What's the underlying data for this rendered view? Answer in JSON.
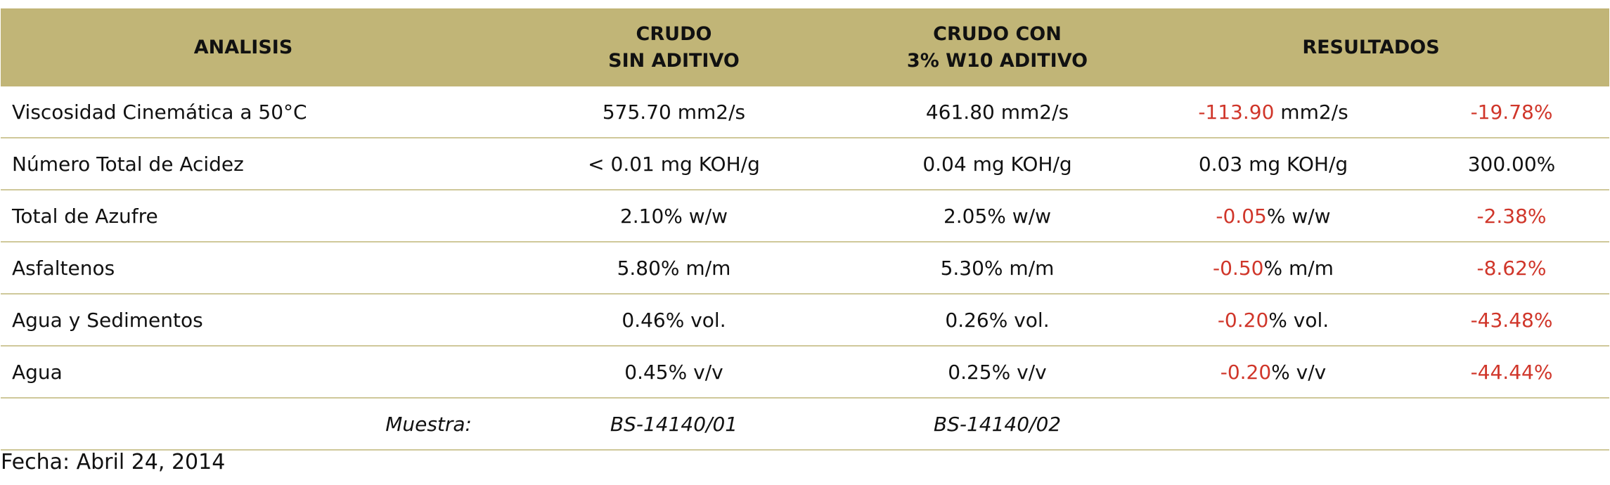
{
  "header": {
    "analisis": "ANALISIS",
    "crudo_sin_line1": "CRUDO",
    "crudo_sin_line2": "SIN ADITIVO",
    "crudo_con_line1": "CRUDO CON",
    "crudo_con_line2": "3% W10 ADITIVO",
    "resultados": "RESULTADOS"
  },
  "rows": [
    {
      "name": "Viscosidad Cinemática a 50°C",
      "sin": "575.70 mm2/s",
      "con": "461.80 mm2/s",
      "diff_value": "-113.90",
      "diff_unit": " mm2/s",
      "diff_value_red": true,
      "pct": "-19.78%",
      "pct_red": true
    },
    {
      "name": "Número Total de Acidez",
      "sin": "< 0.01 mg KOH/g",
      "con": "0.04 mg KOH/g",
      "diff_value": "0.03",
      "diff_unit": " mg KOH/g",
      "diff_value_red": false,
      "pct": "300.00%",
      "pct_red": false
    },
    {
      "name": "Total de Azufre",
      "sin": "2.10% w/w",
      "con": "2.05% w/w",
      "diff_value": "-0.05",
      "diff_unit": "% w/w",
      "diff_value_red": true,
      "pct": "-2.38%",
      "pct_red": true
    },
    {
      "name": "Asfaltenos",
      "sin": "5.80% m/m",
      "con": "5.30% m/m",
      "diff_value": "-0.50",
      "diff_unit": "% m/m",
      "diff_value_red": true,
      "pct": "-8.62%",
      "pct_red": true
    },
    {
      "name": "Agua y Sedimentos",
      "sin": "0.46% vol.",
      "con": "0.26% vol.",
      "diff_value": "-0.20",
      "diff_unit": "% vol.",
      "diff_value_red": true,
      "pct": "-43.48%",
      "pct_red": true
    },
    {
      "name": "Agua",
      "sin": "0.45% v/v",
      "con": "0.25% v/v",
      "diff_value": "-0.20",
      "diff_unit": "% v/v",
      "diff_value_red": true,
      "pct": "-44.44%",
      "pct_red": true
    }
  ],
  "muestra": {
    "label": "Muestra:",
    "sin": "BS-14140/01",
    "con": "BS-14140/02"
  },
  "fecha": "Fecha: Abril 24, 2014",
  "colors": {
    "header_bg": "#c1b577",
    "negative": "#d0362a",
    "row_border": "#cfc89a"
  }
}
